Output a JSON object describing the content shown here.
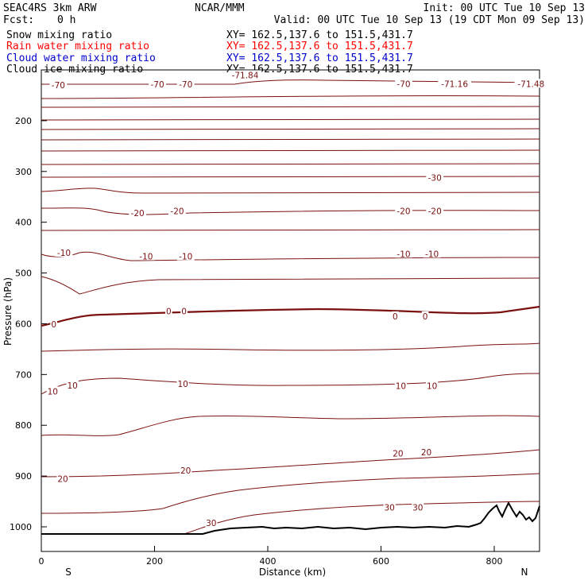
{
  "header": {
    "model": "SEAC4RS  3km ARW",
    "center": "NCAR/MMM",
    "init": "Init: 00 UTC Tue 10 Sep 13",
    "fcst_label": "Fcst:",
    "fcst_value": "0 h",
    "valid": "Valid: 00 UTC Tue 10 Sep 13 (19 CDT Mon 09 Sep 13)"
  },
  "legend": [
    {
      "name": "Snow mixing ratio",
      "xy": "XY= 162.5,137.6 to 151.5,431.7",
      "color": "#000000"
    },
    {
      "name": "Rain water mixing ratio",
      "xy": "XY= 162.5,137.6 to 151.5,431.7",
      "color": "#ff0000"
    },
    {
      "name": "Cloud water mixing ratio",
      "xy": "XY= 162.5,137.6 to 151.5,431.7",
      "color": "#0000cc"
    },
    {
      "name": "Cloud ice mixing ratio",
      "xy": "XY= 162.5,137.6 to 151.5,431.7",
      "color": "#000000"
    }
  ],
  "chart_data": {
    "type": "line",
    "xlabel": "Distance (km)",
    "ylabel": "Pressure (hPa)",
    "xlim": [
      0,
      880
    ],
    "ylim": [
      1050,
      100
    ],
    "xticks": [
      0,
      200,
      400,
      600,
      800
    ],
    "yticks": [
      100,
      200,
      300,
      400,
      500,
      600,
      700,
      800,
      900,
      1000
    ],
    "x_end_labels": {
      "left": "S",
      "right": "N"
    },
    "contour_color": "#7a1010",
    "contour_labels": [
      {
        "text": "-70",
        "x": 30,
        "p": 130
      },
      {
        "text": "-70",
        "x": 205,
        "p": 128
      },
      {
        "text": "-70",
        "x": 255,
        "p": 128
      },
      {
        "text": "-71.84",
        "x": 360,
        "p": 110
      },
      {
        "text": "-70",
        "x": 640,
        "p": 127
      },
      {
        "text": "-71.16",
        "x": 730,
        "p": 127
      },
      {
        "text": "-71.48",
        "x": 865,
        "p": 127
      },
      {
        "text": "-30",
        "x": 695,
        "p": 312
      },
      {
        "text": "-20",
        "x": 170,
        "p": 382
      },
      {
        "text": "-20",
        "x": 240,
        "p": 378
      },
      {
        "text": "-20",
        "x": 640,
        "p": 378
      },
      {
        "text": "-20",
        "x": 695,
        "p": 378
      },
      {
        "text": "-10",
        "x": 40,
        "p": 460
      },
      {
        "text": "-10",
        "x": 185,
        "p": 467
      },
      {
        "text": "-10",
        "x": 255,
        "p": 467
      },
      {
        "text": "-10",
        "x": 640,
        "p": 462
      },
      {
        "text": "-10",
        "x": 690,
        "p": 462
      },
      {
        "text": "0",
        "x": 22,
        "p": 601
      },
      {
        "text": "0",
        "x": 225,
        "p": 575
      },
      {
        "text": "0",
        "x": 252,
        "p": 575
      },
      {
        "text": "0",
        "x": 625,
        "p": 585
      },
      {
        "text": "0",
        "x": 678,
        "p": 585
      },
      {
        "text": "10",
        "x": 20,
        "p": 733
      },
      {
        "text": "10",
        "x": 55,
        "p": 721
      },
      {
        "text": "10",
        "x": 250,
        "p": 718
      },
      {
        "text": "10",
        "x": 635,
        "p": 722
      },
      {
        "text": "10",
        "x": 690,
        "p": 722
      },
      {
        "text": "20",
        "x": 38,
        "p": 905
      },
      {
        "text": "20",
        "x": 255,
        "p": 889
      },
      {
        "text": "20",
        "x": 630,
        "p": 855
      },
      {
        "text": "20",
        "x": 680,
        "p": 853
      },
      {
        "text": "30",
        "x": 300,
        "p": 992
      },
      {
        "text": "30",
        "x": 615,
        "p": 962
      },
      {
        "text": "30",
        "x": 665,
        "p": 962
      }
    ]
  }
}
